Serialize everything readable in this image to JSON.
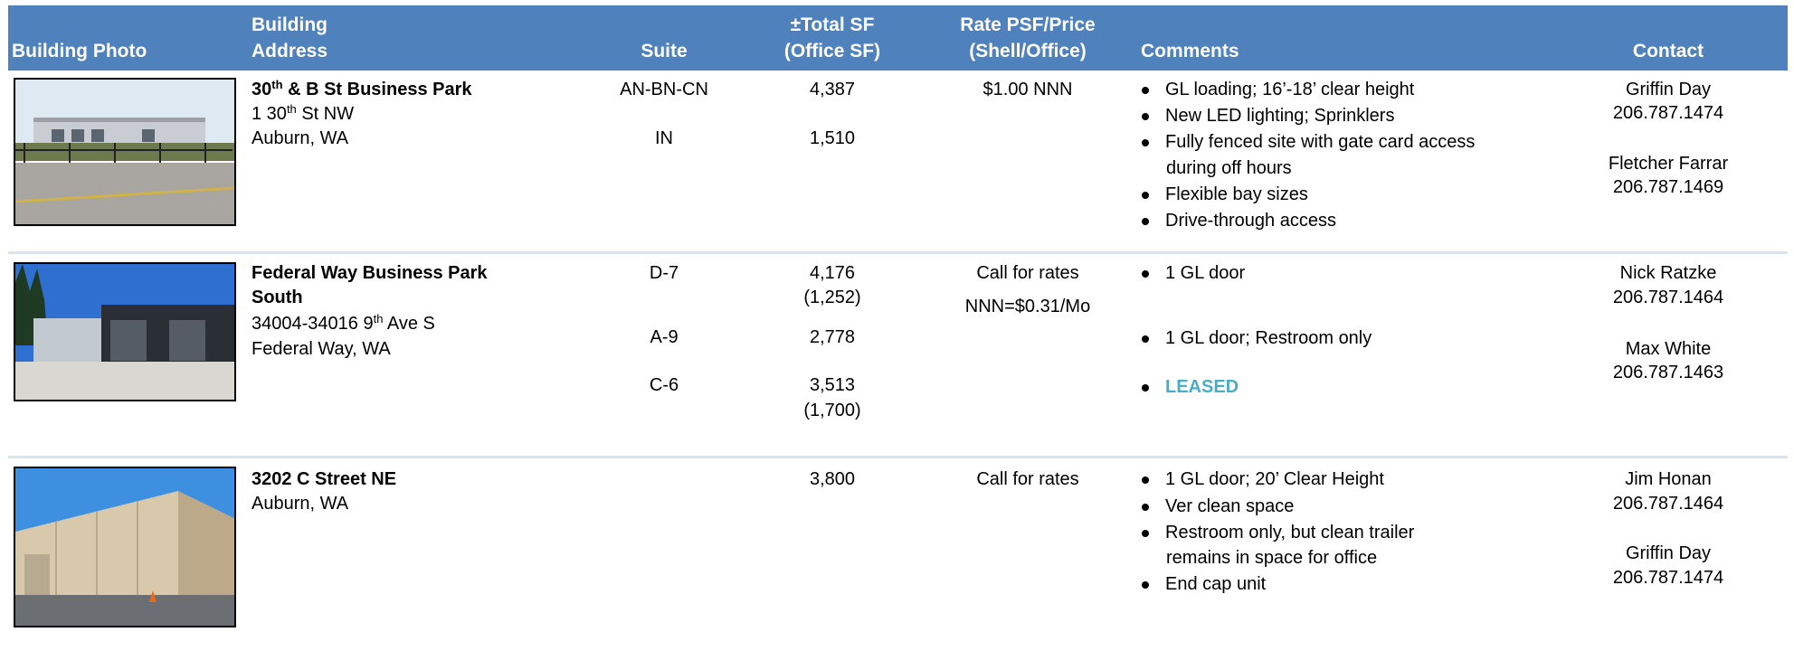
{
  "header": {
    "columns": [
      [
        "Building Photo"
      ],
      [
        "Building",
        "Address"
      ],
      [
        "Suite"
      ],
      [
        "±Total SF",
        "(Office SF)"
      ],
      [
        "Rate PSF/Price",
        "(Shell/Office)"
      ],
      [
        "Comments"
      ],
      [
        "Contact"
      ]
    ]
  },
  "rows": [
    {
      "name": [
        "30",
        "th",
        " & B St Business Park"
      ],
      "address": [
        [
          "1 30",
          "th",
          " St NW"
        ],
        [
          "Auburn, WA"
        ]
      ],
      "suites": [
        {
          "suite": "AN-BN-CN",
          "sf": [
            "4,387"
          ]
        },
        {
          "suite": "IN",
          "sf": [
            "1,510"
          ]
        }
      ],
      "rate": [
        "$1.00 NNN"
      ],
      "comments": [
        [
          "GL loading; 16’-18’ clear height"
        ],
        [
          "New LED lighting; Sprinklers"
        ],
        [
          "Fully fenced site with gate card access",
          "during off hours"
        ],
        [
          "Flexible bay sizes"
        ],
        [
          "Drive-through access"
        ]
      ],
      "contacts": [
        {
          "name": "Griffin Day",
          "phone": "206.787.1474"
        },
        {
          "name": "Fletcher Farrar",
          "phone": "206.787.1469"
        }
      ]
    },
    {
      "name": [
        "Federal Way Business Park",
        "South"
      ],
      "address": [
        [
          "34004-34016 9",
          "th",
          " Ave S"
        ],
        [
          "Federal Way, WA"
        ]
      ],
      "suites": [
        {
          "suite": "D-7",
          "sf": [
            "4,176",
            "(1,252)"
          ]
        },
        {
          "suite": "A-9",
          "sf": [
            "2,778"
          ]
        },
        {
          "suite": "C-6",
          "sf": [
            "3,513",
            "(1,700)"
          ]
        }
      ],
      "rate": [
        "Call for rates",
        "NNN=$0.31/Mo"
      ],
      "comments": [
        [
          "1 GL door"
        ],
        [
          "1 GL door; Restroom only"
        ],
        [
          "LEASED"
        ]
      ],
      "contacts": [
        {
          "name": "Nick Ratzke",
          "phone": "206.787.1464"
        },
        {
          "name": "Max White",
          "phone": "206.787.1463"
        }
      ]
    },
    {
      "name": [
        "3202 C Street NE"
      ],
      "address": [
        [
          "Auburn, WA"
        ]
      ],
      "suites": [
        {
          "sf": [
            "3,800"
          ]
        }
      ],
      "rate": [
        "Call for rates"
      ],
      "comments": [
        [
          "1 GL door; 20’ Clear Height"
        ],
        [
          "Ver clean space"
        ],
        [
          "Restroom only, but clean trailer",
          "remains in space for office"
        ],
        [
          "End cap unit"
        ]
      ],
      "contacts": [
        {
          "name": "Jim Honan",
          "phone": "206.787.1464"
        },
        {
          "name": "Griffin Day",
          "phone": "206.787.1474"
        }
      ]
    }
  ]
}
